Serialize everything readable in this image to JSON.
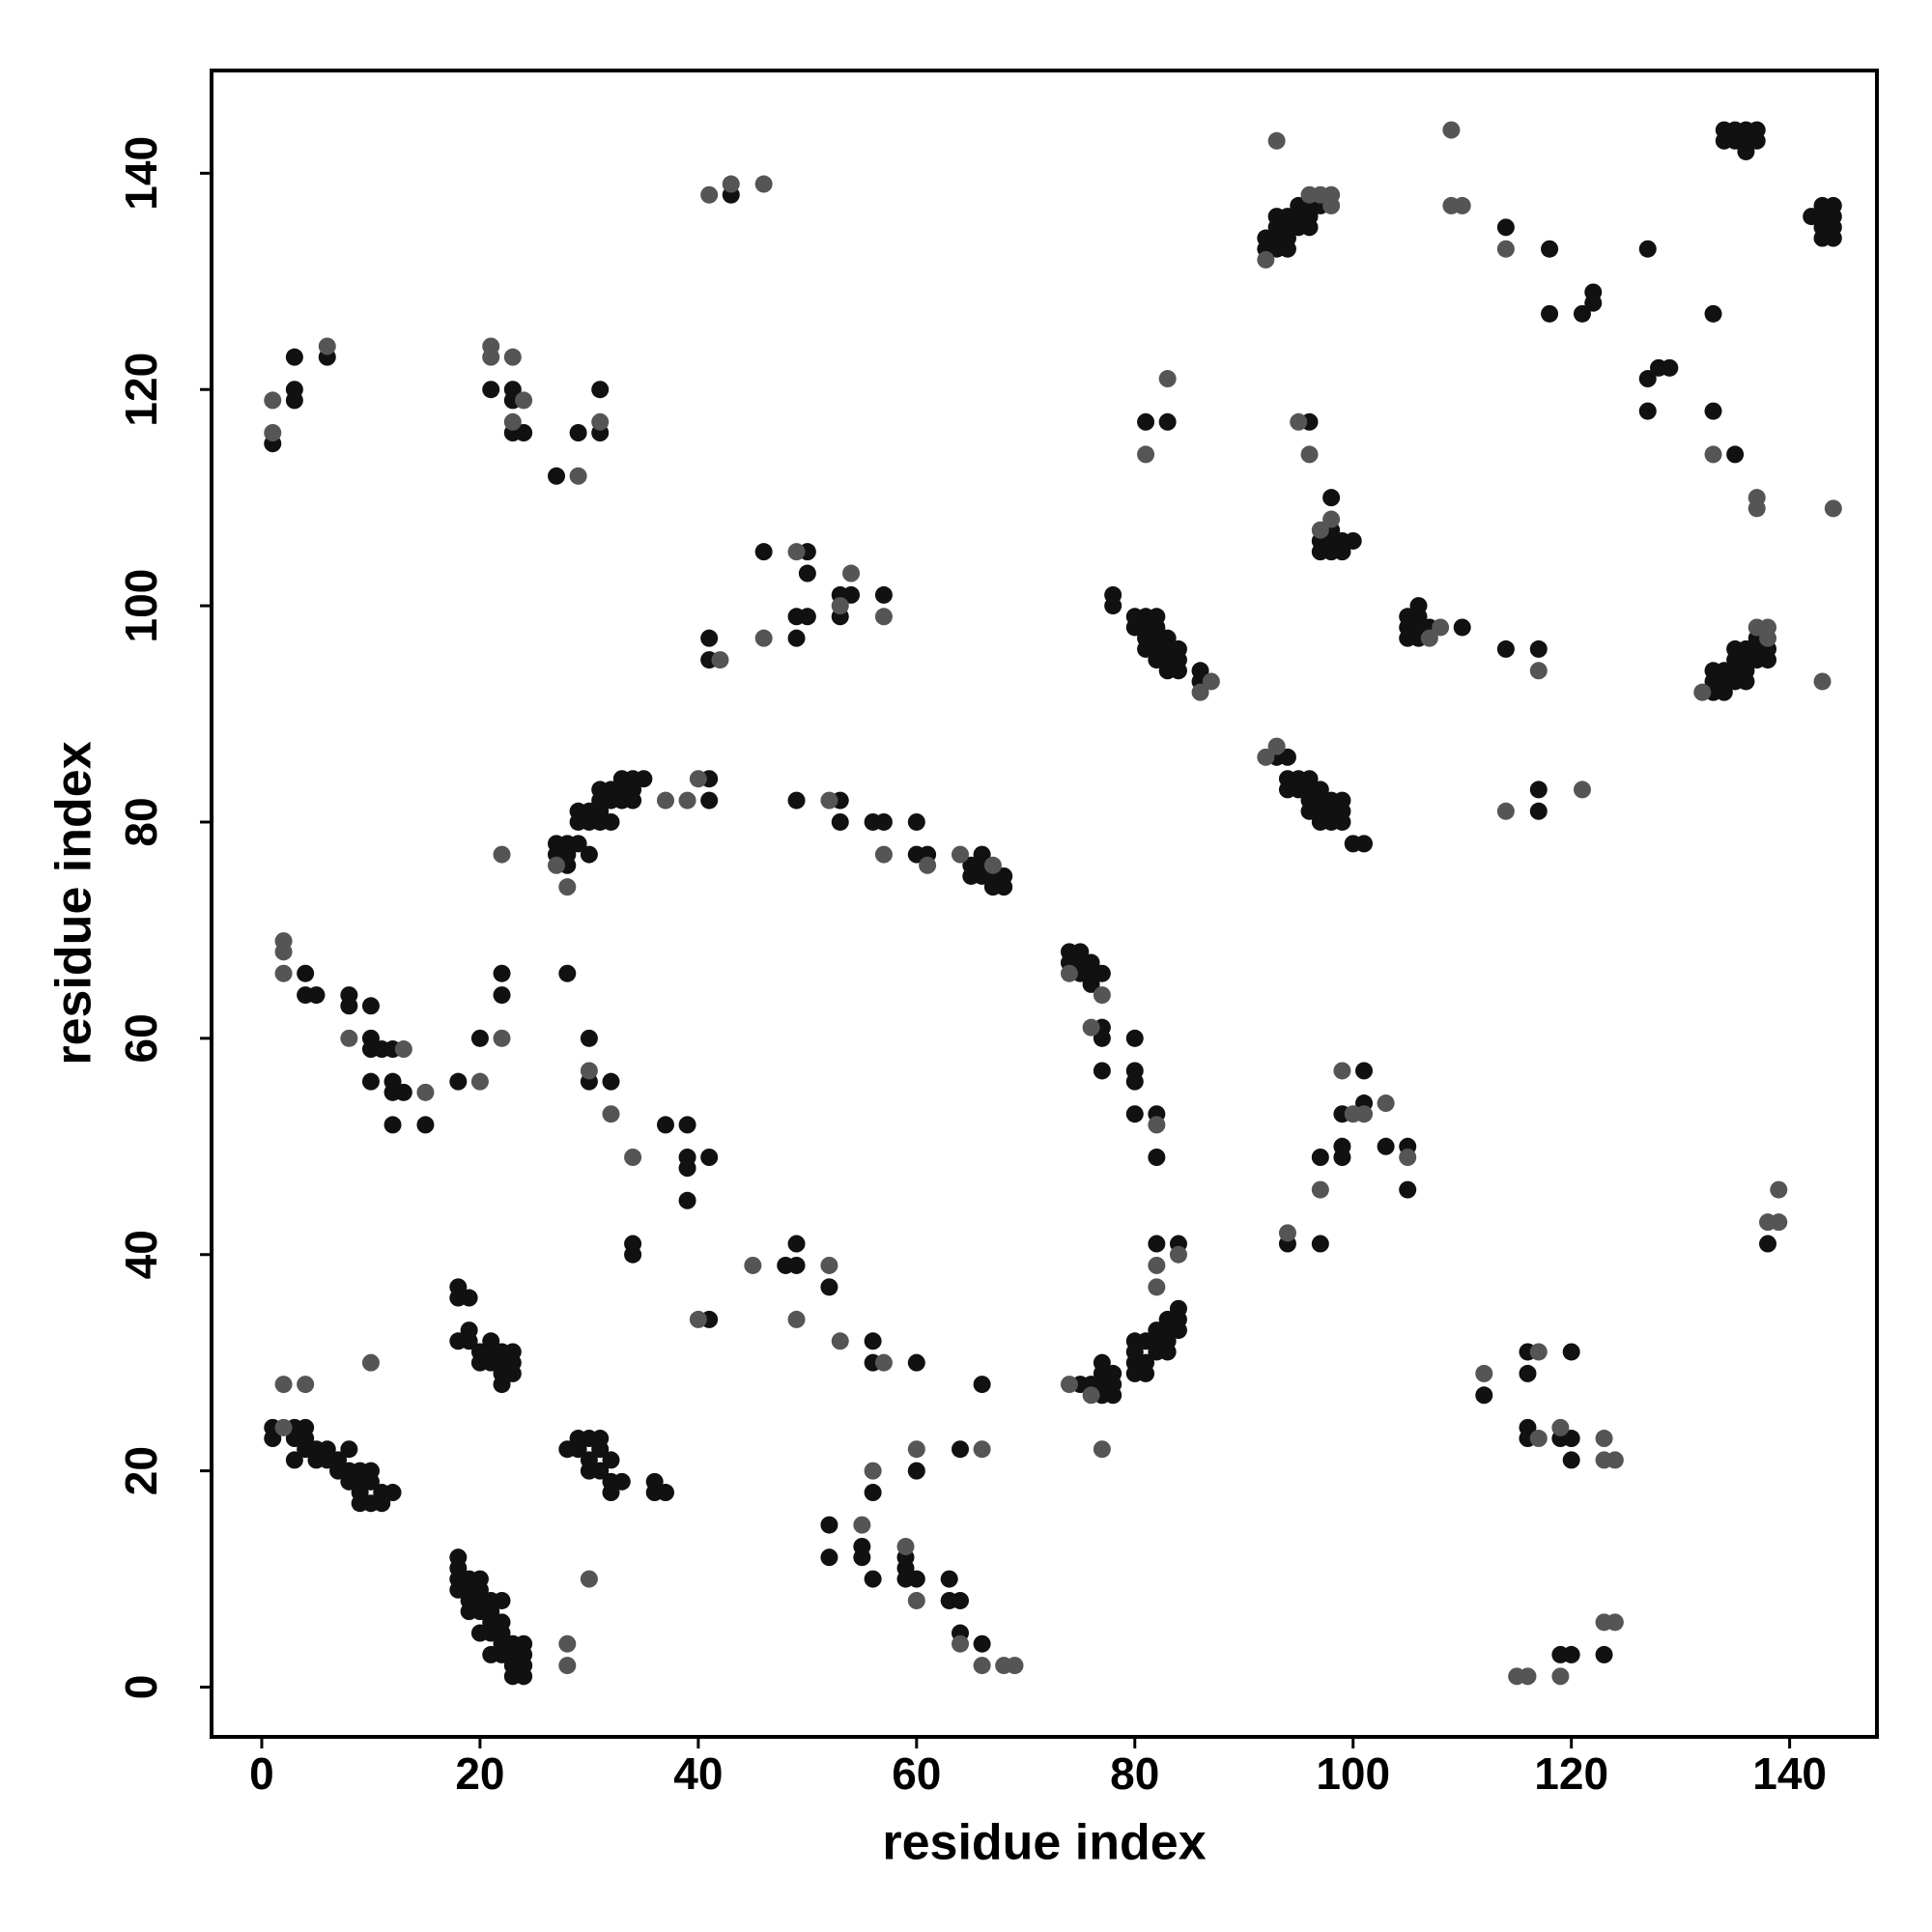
{
  "chart_data": {
    "type": "scatter",
    "xlabel": "residue index",
    "ylabel": "residue index",
    "xlim": [
      -4.6,
      148
    ],
    "ylim": [
      -4.6,
      149.5
    ],
    "xticks": [
      0,
      20,
      40,
      60,
      80,
      100,
      120,
      140
    ],
    "yticks": [
      0,
      20,
      40,
      60,
      80,
      100,
      120,
      140
    ],
    "series": [
      {
        "color": "#111111",
        "x": [
          1,
          1,
          3,
          3,
          3,
          4,
          4,
          4,
          5,
          5,
          6,
          6,
          7,
          7,
          8,
          8,
          8,
          9,
          9,
          9,
          10,
          10,
          10,
          11,
          11,
          12,
          9,
          18,
          18,
          18,
          18,
          19,
          19,
          19,
          19,
          20,
          20,
          20,
          20,
          20,
          21,
          21,
          21,
          21,
          21,
          22,
          22,
          22,
          22,
          22,
          23,
          23,
          23,
          23,
          24,
          24,
          24,
          24,
          18,
          18,
          19,
          18,
          19,
          19,
          20,
          20,
          21,
          21,
          21,
          22,
          22,
          22,
          22,
          23,
          23,
          23,
          28,
          29,
          29,
          30,
          30,
          30,
          31,
          31,
          31,
          32,
          32,
          32,
          33,
          36,
          36,
          37,
          52,
          52,
          55,
          55,
          56,
          56,
          59,
          59,
          59,
          60,
          60,
          63,
          63,
          64,
          64,
          66,
          48,
          49,
          49,
          52,
          56,
          56,
          60,
          66,
          64,
          75,
          76,
          77,
          77,
          77,
          77,
          78,
          78,
          78,
          80,
          80,
          80,
          80,
          81,
          81,
          81,
          82,
          82,
          82,
          82,
          83,
          83,
          83,
          83,
          84,
          84,
          84,
          84,
          74,
          74,
          75,
          75,
          75,
          76,
          76,
          76,
          77,
          77,
          77,
          77,
          80,
          80,
          80,
          80,
          82,
          82,
          4,
          4,
          5,
          8,
          8,
          10,
          10,
          10,
          10,
          11,
          12,
          12,
          12,
          12,
          13,
          15,
          18,
          20,
          22,
          22,
          28,
          30,
          30,
          32,
          34,
          34,
          37,
          39,
          39,
          39,
          39,
          41,
          41,
          27,
          27,
          28,
          28,
          28,
          29,
          29,
          29,
          30,
          30,
          30,
          31,
          31,
          31,
          31,
          32,
          32,
          32,
          33,
          33,
          33,
          34,
          34,
          34,
          35,
          41,
          41,
          49,
          53,
          53,
          56,
          57,
          60,
          60,
          61,
          65,
          65,
          66,
          66,
          66,
          67,
          67,
          68,
          68,
          41,
          41,
          46,
          49,
          49,
          50,
          50,
          50,
          53,
          53,
          54,
          57,
          1,
          3,
          3,
          3,
          6,
          21,
          23,
          23,
          23,
          24,
          27,
          29,
          31,
          31,
          43,
          78,
          78,
          80,
          80,
          81,
          81,
          81,
          81,
          82,
          82,
          82,
          82,
          82,
          83,
          83,
          83,
          83,
          84,
          84,
          84,
          86,
          86,
          81,
          83,
          96,
          97,
          97,
          98,
          98,
          98,
          98,
          99,
          99,
          100,
          93,
          94,
          94,
          94,
          95,
          95,
          96,
          96,
          96,
          96,
          97,
          97,
          97,
          97,
          98,
          98,
          98,
          99,
          99,
          99,
          100,
          101,
          92,
          92,
          93,
          93,
          93,
          93,
          94,
          94,
          94,
          94,
          95,
          95,
          95,
          96,
          96,
          96,
          97,
          105,
          105,
          105,
          106,
          106,
          106,
          106,
          107,
          110,
          114,
          117,
          114,
          118,
          118,
          121,
          122,
          122,
          127,
          127,
          127,
          128,
          129,
          133,
          133,
          135,
          134,
          134,
          135,
          135,
          136,
          136,
          136,
          137,
          137,
          142,
          143,
          143,
          143,
          143,
          144,
          144,
          144,
          144,
          133,
          133,
          133,
          134,
          134,
          134,
          135,
          135,
          135,
          135,
          136,
          136,
          136,
          136,
          137,
          137,
          137,
          138,
          138,
          117,
          117,
          99,
          99,
          99,
          101,
          101,
          97,
          103,
          105,
          105,
          94,
          97,
          138,
          112,
          116,
          116,
          116,
          116,
          119,
          120,
          120,
          120,
          119,
          120,
          123
        ],
        "y": [
          23,
          24,
          24,
          23,
          21,
          24,
          23,
          22,
          22,
          21,
          22,
          21,
          21,
          20,
          22,
          19,
          20,
          19,
          20,
          18,
          20,
          19,
          17,
          18,
          17,
          18,
          17,
          9,
          10,
          11,
          12,
          9,
          10,
          8,
          7,
          10,
          9,
          8,
          7,
          5,
          8,
          7,
          6,
          5,
          3,
          8,
          6,
          5,
          4,
          3,
          4,
          3,
          2,
          1,
          4,
          3,
          2,
          1,
          37,
          36,
          36,
          32,
          33,
          32,
          31,
          30,
          32,
          31,
          30,
          31,
          30,
          29,
          28,
          31,
          30,
          29,
          22,
          23,
          22,
          23,
          21,
          20,
          23,
          22,
          20,
          21,
          19,
          18,
          19,
          19,
          18,
          18,
          15,
          12,
          13,
          12,
          18,
          10,
          12,
          11,
          10,
          10,
          20,
          10,
          8,
          8,
          5,
          4,
          39,
          41,
          39,
          37,
          32,
          30,
          30,
          28,
          22,
          28,
          28,
          30,
          29,
          28,
          27,
          29,
          28,
          27,
          32,
          31,
          30,
          29,
          32,
          30,
          29,
          33,
          32,
          31,
          41,
          34,
          33,
          32,
          31,
          35,
          34,
          33,
          41,
          68,
          67,
          68,
          67,
          66,
          67,
          66,
          65,
          66,
          61,
          60,
          57,
          60,
          57,
          56,
          53,
          53,
          49,
          66,
          64,
          64,
          64,
          63,
          63,
          60,
          59,
          56,
          59,
          59,
          56,
          55,
          52,
          55,
          52,
          56,
          60,
          66,
          64,
          66,
          60,
          56,
          56,
          41,
          40,
          52,
          52,
          49,
          48,
          45,
          49,
          34,
          78,
          77,
          78,
          77,
          76,
          78,
          81,
          80,
          81,
          80,
          77,
          83,
          82,
          81,
          80,
          83,
          82,
          80,
          84,
          83,
          82,
          84,
          83,
          82,
          84,
          84,
          82,
          82,
          82,
          80,
          80,
          80,
          80,
          77,
          77,
          76,
          75,
          77,
          76,
          75,
          75,
          74,
          75,
          74,
          97,
          95,
          105,
          99,
          97,
          105,
          103,
          99,
          101,
          99,
          101,
          101,
          115,
          123,
          120,
          119,
          123,
          120,
          120,
          119,
          116,
          116,
          112,
          116,
          120,
          116,
          138,
          101,
          100,
          99,
          98,
          99,
          98,
          97,
          96,
          99,
          98,
          97,
          96,
          95,
          97,
          96,
          95,
          94,
          96,
          95,
          94,
          94,
          93,
          117,
          117,
          117,
          106,
          105,
          110,
          107,
          106,
          105,
          106,
          105,
          106,
          86,
          86,
          84,
          83,
          84,
          83,
          84,
          83,
          82,
          81,
          83,
          82,
          81,
          80,
          82,
          81,
          80,
          82,
          81,
          80,
          78,
          78,
          134,
          133,
          136,
          135,
          134,
          133,
          136,
          135,
          134,
          133,
          137,
          136,
          135,
          137,
          136,
          135,
          137,
          99,
          98,
          97,
          100,
          99,
          98,
          97,
          98,
          98,
          96,
          96,
          135,
          133,
          127,
          127,
          129,
          128,
          133,
          121,
          118,
          122,
          122,
          127,
          118,
          114,
          144,
          143,
          144,
          143,
          144,
          143,
          142,
          144,
          143,
          136,
          137,
          136,
          135,
          134,
          137,
          136,
          135,
          134,
          94,
          93,
          92,
          94,
          93,
          92,
          96,
          95,
          94,
          93,
          96,
          95,
          94,
          93,
          97,
          96,
          95,
          96,
          95,
          83,
          81,
          53,
          50,
          49,
          57,
          54,
          49,
          50,
          50,
          46,
          41,
          41,
          41,
          27,
          31,
          29,
          24,
          23,
          23,
          23,
          21,
          31,
          3,
          3,
          3
        ]
      },
      {
        "color": "#555555",
        "x": [
          2,
          2,
          4,
          10,
          2,
          2,
          2,
          8,
          13,
          15,
          20,
          22,
          22,
          30,
          32,
          34,
          28,
          27,
          37,
          39,
          40,
          52,
          57,
          61,
          64,
          67,
          41,
          43,
          46,
          21,
          21,
          6,
          1,
          23,
          23,
          24,
          29,
          31,
          1,
          49,
          42,
          46,
          54,
          53,
          57,
          83,
          81,
          95,
          96,
          97,
          98,
          93,
          92,
          96,
          97,
          98,
          98,
          109,
          109,
          110,
          114,
          133,
          137,
          137,
          144,
          132,
          137,
          138,
          138,
          143,
          121,
          114,
          117,
          107,
          108,
          93,
          92,
          86,
          87,
          99,
          100,
          101,
          103,
          105,
          94,
          97,
          139,
          139,
          138,
          112,
          117,
          117,
          119,
          123,
          124,
          123,
          123,
          124,
          115,
          116,
          119,
          28,
          28,
          30,
          66,
          68,
          69,
          64,
          60,
          59,
          55,
          60,
          66,
          56,
          53,
          57,
          49,
          40,
          45,
          52,
          76,
          77,
          74,
          82,
          82,
          84,
          82,
          76,
          77,
          74
        ],
        "y": [
          24,
          28,
          28,
          30,
          69,
          68,
          66,
          60,
          59,
          55,
          56,
          77,
          60,
          57,
          53,
          49,
          74,
          76,
          82,
          82,
          84,
          82,
          77,
          76,
          77,
          76,
          138,
          139,
          139,
          124,
          123,
          124,
          116,
          123,
          117,
          119,
          112,
          117,
          119,
          105,
          95,
          97,
          103,
          100,
          99,
          121,
          114,
          117,
          114,
          107,
          108,
          143,
          132,
          138,
          138,
          137,
          138,
          144,
          137,
          137,
          133,
          114,
          110,
          109,
          109,
          92,
          98,
          98,
          97,
          93,
          83,
          81,
          94,
          97,
          98,
          87,
          86,
          92,
          93,
          57,
          53,
          53,
          54,
          49,
          42,
          46,
          46,
          43,
          43,
          29,
          31,
          23,
          24,
          21,
          21,
          23,
          6,
          6,
          1,
          1,
          1,
          4,
          2,
          10,
          2,
          2,
          2,
          4,
          8,
          13,
          15,
          22,
          22,
          20,
          32,
          30,
          34,
          34,
          39,
          39,
          27,
          22,
          28,
          37,
          39,
          40,
          52,
          61,
          64,
          66
        ]
      }
    ]
  }
}
